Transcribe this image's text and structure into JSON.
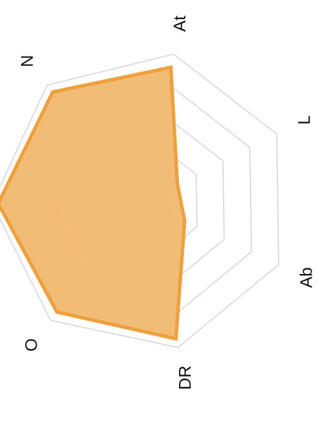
{
  "chart_data": {
    "type": "radar",
    "axes": [
      "At",
      "L",
      "Ab",
      "DR",
      "O",
      "",
      "N"
    ],
    "series": [
      {
        "values": [
          91,
          26,
          31,
          94,
          93,
          96,
          94
        ],
        "color": "#eda03d",
        "fill": "#f0b86e"
      }
    ],
    "rlim": [
      0,
      100
    ],
    "grid_levels": 5,
    "grid": true,
    "legend": "none",
    "colors": {
      "grid": "#d6d6d6",
      "text": "#111111",
      "background": "#ffffff"
    }
  }
}
